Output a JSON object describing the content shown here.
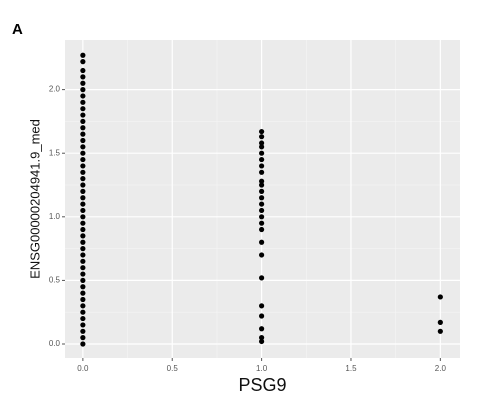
{
  "panel_label": "A",
  "chart_data": {
    "type": "scatter",
    "x_label": "PSG9",
    "y_label": "ENSG00000204941.9_med",
    "color": "#000000",
    "x": [
      0,
      0,
      0,
      0,
      0,
      0,
      0,
      0,
      0,
      0,
      0,
      0,
      0,
      0,
      0,
      0,
      0,
      0,
      0,
      0,
      0,
      0,
      0,
      0,
      0,
      0,
      0,
      0,
      0,
      0,
      0,
      0,
      0,
      0,
      0,
      0,
      0,
      0,
      0,
      0,
      0,
      0,
      0,
      0,
      0,
      0,
      1,
      1,
      1,
      1,
      1,
      1,
      1,
      1,
      1,
      1,
      1,
      1,
      1,
      1,
      1,
      1,
      1,
      1,
      1,
      1,
      1,
      1,
      1,
      1,
      1,
      2,
      2,
      2
    ],
    "values": [
      2.27,
      2.22,
      2.15,
      2.1,
      2.05,
      2.0,
      1.95,
      1.9,
      1.85,
      1.8,
      1.75,
      1.7,
      1.65,
      1.6,
      1.55,
      1.5,
      1.45,
      1.4,
      1.35,
      1.3,
      1.25,
      1.2,
      1.15,
      1.1,
      1.05,
      1.0,
      0.95,
      0.9,
      0.85,
      0.8,
      0.75,
      0.7,
      0.65,
      0.6,
      0.55,
      0.5,
      0.45,
      0.4,
      0.35,
      0.3,
      0.25,
      0.2,
      0.15,
      0.1,
      0.05,
      0.0,
      1.67,
      1.63,
      1.58,
      1.55,
      1.5,
      1.45,
      1.4,
      1.35,
      1.28,
      1.25,
      1.2,
      1.15,
      1.1,
      1.05,
      1.0,
      0.95,
      0.9,
      0.8,
      0.7,
      0.52,
      0.3,
      0.22,
      0.12,
      0.05,
      0.02,
      0.37,
      0.17,
      0.1
    ],
    "xlim": [
      -0.1,
      2.11
    ],
    "ylim": [
      -0.11,
      2.39
    ],
    "xticks": [
      {
        "value": 0,
        "label": "0.0"
      },
      0.5,
      {
        "value": 1,
        "label": "1.0"
      },
      1.5,
      {
        "value": 2,
        "label": "2.0"
      }
    ],
    "yticks": [
      {
        "value": 0,
        "label": "0.0"
      },
      0.5,
      {
        "value": 1,
        "label": "1.0"
      },
      1.5,
      {
        "value": 2,
        "label": "2.0"
      }
    ],
    "grid": true
  }
}
